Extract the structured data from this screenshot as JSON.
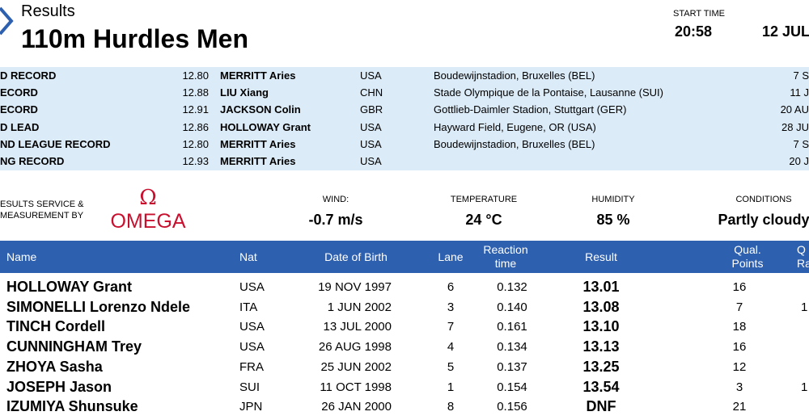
{
  "header": {
    "section": "Results",
    "title": "110m Hurdles Men",
    "start_time_label": "START TIME",
    "start_time": "20:58",
    "date": "12 JUL"
  },
  "records": [
    {
      "label": "D RECORD",
      "mark": "12.80",
      "name": "MERRITT Aries",
      "nat": "USA",
      "venue": "Boudewijnstadion, Bruxelles (BEL)",
      "date": "7 S"
    },
    {
      "label": "ECORD",
      "mark": "12.88",
      "name": "LIU Xiang",
      "nat": "CHN",
      "venue": "Stade Olympique de la Pontaise, Lausanne (SUI)",
      "date": "11 J"
    },
    {
      "label": "ECORD",
      "mark": "12.91",
      "name": "JACKSON Colin",
      "nat": "GBR",
      "venue": "Gottlieb-Daimler Stadion, Stuttgart (GER)",
      "date": "20 AU"
    },
    {
      "label": "D LEAD",
      "mark": "12.86",
      "name": "HOLLOWAY Grant",
      "nat": "USA",
      "venue": "Hayward Field, Eugene, OR (USA)",
      "date": "28 JU"
    },
    {
      "label": "ND LEAGUE RECORD",
      "mark": "12.80",
      "name": "MERRITT Aries",
      "nat": "USA",
      "venue": "Boudewijnstadion, Bruxelles (BEL)",
      "date": "7 S"
    },
    {
      "label": "NG RECORD",
      "mark": "12.93",
      "name": "MERRITT Aries",
      "nat": "USA",
      "date": "20 J"
    }
  ],
  "conditions": {
    "service": [
      "ESULTS SERVICE &",
      "MEASUREMENT BY"
    ],
    "logo_symbol": "Ω",
    "logo_text": "OMEGA",
    "items": [
      {
        "label": "WIND:",
        "value": "-0.7 m/s"
      },
      {
        "label": "TEMPERATURE",
        "value": "24 °C"
      },
      {
        "label": "HUMIDITY",
        "value": "85 %"
      },
      {
        "label": "CONDITIONS",
        "value": "Partly cloudy"
      }
    ]
  },
  "results": {
    "columns": [
      [
        "Name"
      ],
      [
        "Nat"
      ],
      [
        "Date of Birth"
      ],
      [
        "Lane"
      ],
      [
        "Reaction",
        "time"
      ],
      [
        "Result"
      ],
      [
        "Qual.",
        "Points"
      ],
      [
        "Q",
        "Ra"
      ]
    ],
    "rows": [
      {
        "name": "HOLLOWAY Grant",
        "nat": "USA",
        "dob": "19 NOV 1997",
        "lane": "6",
        "reaction": "0.132",
        "result": "13.01",
        "points": "16"
      },
      {
        "name": "SIMONELLI Lorenzo Ndele",
        "nat": "ITA",
        "dob": "1 JUN 2002",
        "lane": "3",
        "reaction": "0.140",
        "result": "13.08",
        "points": "7",
        "rank": "1"
      },
      {
        "name": "TINCH Cordell",
        "nat": "USA",
        "dob": "13 JUL 2000",
        "lane": "7",
        "reaction": "0.161",
        "result": "13.10",
        "points": "18"
      },
      {
        "name": "CUNNINGHAM Trey",
        "nat": "USA",
        "dob": "26 AUG 1998",
        "lane": "4",
        "reaction": "0.134",
        "result": "13.13",
        "points": "16"
      },
      {
        "name": "ZHOYA Sasha",
        "nat": "FRA",
        "dob": "25 JUN 2002",
        "lane": "5",
        "reaction": "0.137",
        "result": "13.25",
        "points": "12"
      },
      {
        "name": "JOSEPH Jason",
        "nat": "SUI",
        "dob": "11 OCT 1998",
        "lane": "1",
        "reaction": "0.154",
        "result": "13.54",
        "points": "3",
        "rank": "1"
      },
      {
        "name": "IZUMIYA Shunsuke",
        "nat": "JPN",
        "dob": "26 JAN 2000",
        "lane": "8",
        "reaction": "0.156",
        "result": "DNF",
        "points": "21"
      }
    ]
  }
}
